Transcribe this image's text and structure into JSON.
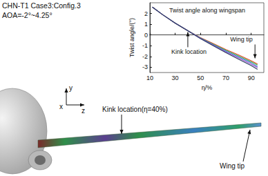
{
  "chart_data": {
    "type": "line",
    "title": "Twist angle along wingspan",
    "x_label": "η/%",
    "y_label": "Twist angle/(°)",
    "x": [
      12,
      20,
      30,
      40,
      50,
      60,
      70,
      80,
      90,
      95
    ],
    "series": [
      {
        "color": "#e8452c",
        "values": [
          2.6,
          1.9,
          1.1,
          0.4,
          -0.25,
          -0.8,
          -1.35,
          -1.85,
          -2.4,
          -2.7
        ]
      },
      {
        "color": "#3cb44b",
        "values": [
          2.6,
          1.9,
          1.1,
          0.4,
          -0.28,
          -0.85,
          -1.42,
          -1.95,
          -2.5,
          -2.8
        ]
      },
      {
        "color": "#3b6fd4",
        "values": [
          2.6,
          1.9,
          1.1,
          0.4,
          -0.3,
          -0.9,
          -1.5,
          -2.05,
          -2.6,
          -2.95
        ]
      },
      {
        "color": "#9b4dca",
        "values": [
          2.6,
          1.9,
          1.1,
          0.4,
          -0.33,
          -0.95,
          -1.58,
          -2.15,
          -2.72,
          -3.05
        ]
      },
      {
        "color": "#2a3f5f",
        "values": [
          2.6,
          1.9,
          1.1,
          0.4,
          -0.35,
          -1.0,
          -1.65,
          -2.25,
          -2.85,
          -3.2
        ]
      }
    ],
    "xlim": [
      10,
      100
    ],
    "xticks": [
      10,
      30,
      50,
      70,
      90
    ],
    "ylim": [
      -3.5,
      3
    ],
    "yticks": [
      -3,
      -2,
      -1,
      0,
      1,
      2
    ],
    "grid": false,
    "annotations": [
      {
        "text": "Kink location",
        "x": 40,
        "y": 0.4
      },
      {
        "text": "Wing tip",
        "x": 93,
        "y": -2.3
      }
    ]
  },
  "figure": {
    "case": "CHN-T1 Case3:Config.3",
    "aoa": "AOA=-2°~4.25°",
    "kink": "Kink location(η=40%)",
    "tip": "Wing tip",
    "axes": [
      "y",
      "x",
      "z"
    ]
  }
}
